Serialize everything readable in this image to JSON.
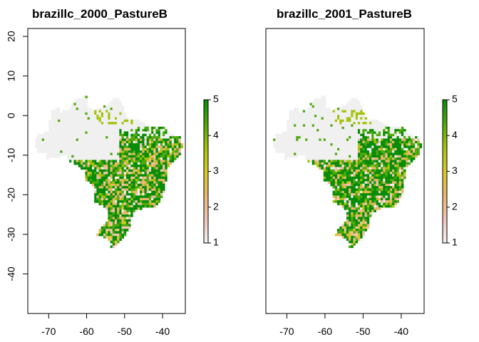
{
  "colors": {
    "no_data": "#f0f0f0",
    "ramp": [
      "#f3f3f3",
      "#f1c6b8",
      "#e9b76d",
      "#d9c928",
      "#a4c30a",
      "#4fa90c",
      "#078c08"
    ]
  },
  "chart_data": [
    {
      "type": "heatmap",
      "title": "brazillc_2000_PastureB",
      "xlabel": "",
      "ylabel": "",
      "xlim": [
        -75.5,
        -34
      ],
      "ylim": [
        -50,
        22
      ],
      "x_ticks": [
        "-70",
        "-60",
        "-50",
        "-40"
      ],
      "x_tick_values": [
        -70,
        -60,
        -50,
        -40
      ],
      "y_ticks": [
        "20",
        "10",
        "0",
        "-10",
        "-20",
        "-30",
        "-40"
      ],
      "y_tick_values": [
        20,
        10,
        0,
        -10,
        -20,
        -30,
        -40
      ],
      "legend_ticks": [
        "1",
        "2",
        "3",
        "4",
        "5"
      ],
      "legend_values": [
        1,
        2,
        3,
        4,
        5
      ],
      "value_range": [
        1,
        5
      ]
    },
    {
      "type": "heatmap",
      "title": "brazillc_2001_PastureB",
      "xlabel": "",
      "ylabel": "",
      "xlim": [
        -75.5,
        -34
      ],
      "ylim": [
        -50,
        22
      ],
      "x_ticks": [
        "-70",
        "-60",
        "-50",
        "-40"
      ],
      "x_tick_values": [
        -70,
        -60,
        -50,
        -40
      ],
      "y_ticks": [],
      "y_tick_values": [],
      "legend_ticks": [
        "1",
        "2",
        "3",
        "4",
        "5"
      ],
      "legend_values": [
        1,
        2,
        3,
        4,
        5
      ],
      "value_range": [
        1,
        5
      ]
    }
  ]
}
